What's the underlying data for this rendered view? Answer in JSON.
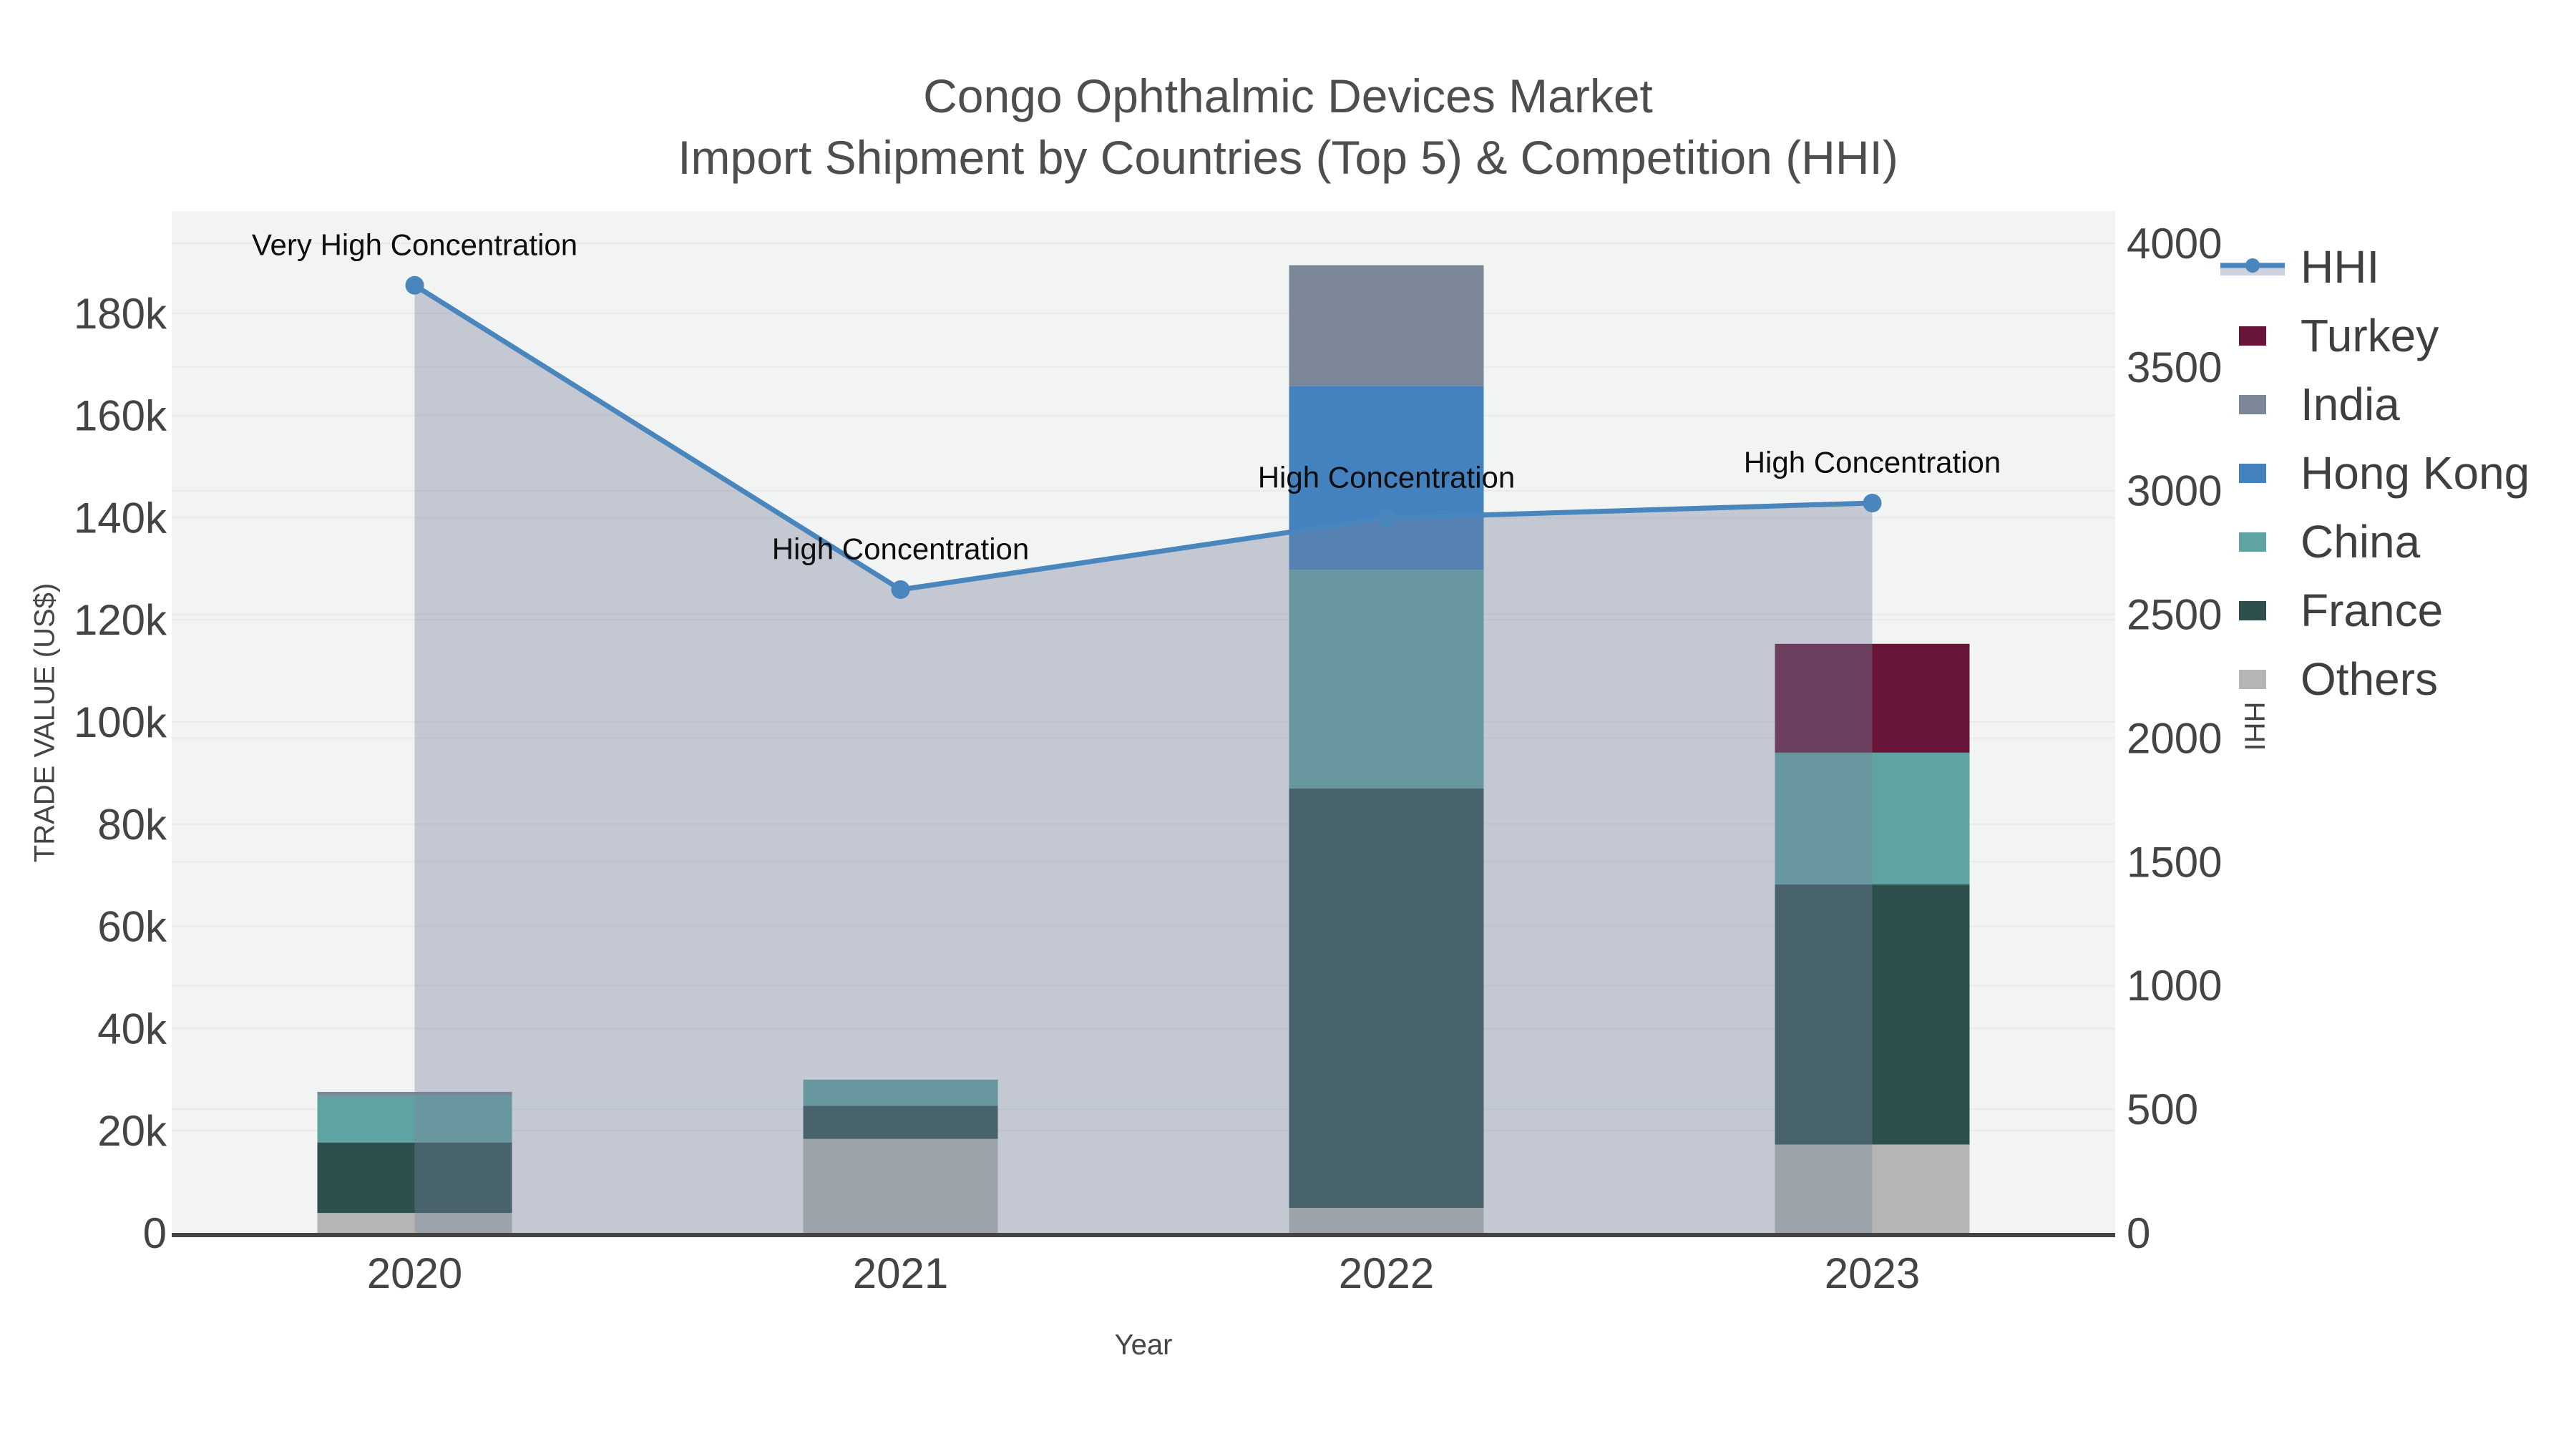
{
  "title": {
    "line1": "Congo Ophthalmic Devices Market",
    "line2": "Import Shipment by Countries (Top 5) & Competition (HHI)"
  },
  "chart_data": {
    "type": "combo-stacked-bar-line",
    "categories": [
      "2020",
      "2021",
      "2022",
      "2023"
    ],
    "value_unit": "US$",
    "series": [
      {
        "name": "Others",
        "color": "#b5b6b4",
        "values": [
          3900,
          18400,
          4900,
          17300
        ]
      },
      {
        "name": "France",
        "color": "#2d504d",
        "values": [
          13800,
          6500,
          82100,
          50900
        ]
      },
      {
        "name": "China",
        "color": "#5fa3a2",
        "values": [
          9200,
          5100,
          42800,
          25800
        ]
      },
      {
        "name": "Hong Kong",
        "color": "#4382be",
        "values": [
          0,
          0,
          35900,
          0
        ]
      },
      {
        "name": "India",
        "color": "#7b8797",
        "values": [
          700,
          0,
          23700,
          0
        ]
      },
      {
        "name": "Turkey",
        "color": "#681539",
        "values": [
          0,
          0,
          0,
          21300
        ]
      }
    ],
    "line_series": {
      "name": "HHI",
      "color": "#4a86be",
      "area_fill": "rgba(118,131,157,0.38)",
      "values": [
        3830,
        2600,
        2890,
        2950
      ]
    },
    "annotations": [
      {
        "year": "2020",
        "text": "Very High Concentration"
      },
      {
        "year": "2021",
        "text": "High Concentration"
      },
      {
        "year": "2022",
        "text": "High Concentration"
      },
      {
        "year": "2023",
        "text": "High Concentration"
      }
    ],
    "x_axis": {
      "title": "Year",
      "tick_labels": [
        "2020",
        "2021",
        "2022",
        "2023"
      ]
    },
    "y_axis_left": {
      "title": "TRADE VALUE (US$)",
      "range": [
        0,
        200000
      ],
      "tick_values": [
        0,
        20000,
        40000,
        60000,
        80000,
        100000,
        120000,
        140000,
        160000,
        180000
      ],
      "tick_labels": [
        "0",
        "20k",
        "40k",
        "60k",
        "80k",
        "100k",
        "120k",
        "140k",
        "160k",
        "180k"
      ]
    },
    "y_axis_right": {
      "title": "HHI",
      "range": [
        0,
        4130
      ],
      "tick_values": [
        0,
        500,
        1000,
        1500,
        2000,
        2500,
        3000,
        3500,
        4000
      ],
      "tick_labels": [
        "0",
        "500",
        "1000",
        "1500",
        "2000",
        "2500",
        "3000",
        "3500",
        "4000"
      ]
    },
    "legend": [
      {
        "label": "HHI",
        "type": "line",
        "color": "#4a86be"
      },
      {
        "label": "Turkey",
        "type": "swatch",
        "color": "#681539"
      },
      {
        "label": "India",
        "type": "swatch",
        "color": "#7b8797"
      },
      {
        "label": "Hong Kong",
        "type": "swatch",
        "color": "#4382be"
      },
      {
        "label": "China",
        "type": "swatch",
        "color": "#5fa3a2"
      },
      {
        "label": "France",
        "type": "swatch",
        "color": "#2d504d"
      },
      {
        "label": "Others",
        "type": "swatch",
        "color": "#b5b6b4"
      }
    ]
  },
  "colors": {
    "page_bg": "#ffffff",
    "plot_bg": "#f2f3f3",
    "grid": "#e9eaea",
    "axis_line": "#444444",
    "tick_text": "#444444",
    "title_text": "#4e4e4e",
    "annotation_text": "#0e0e0e",
    "legend_text": "#3f3f3f",
    "hhi_band": "#ccd3de"
  }
}
